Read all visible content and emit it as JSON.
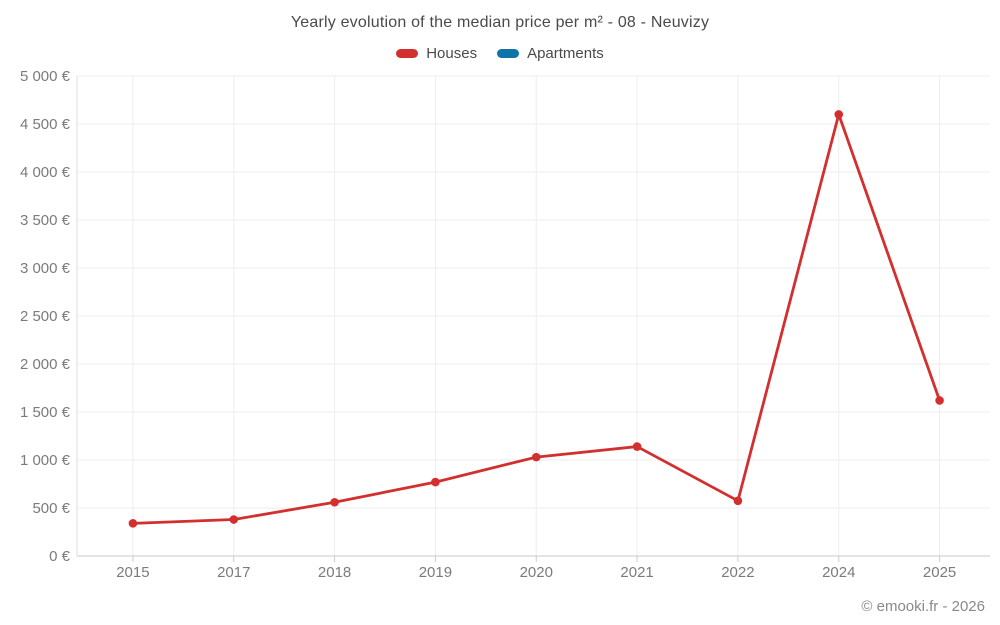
{
  "title": "Yearly evolution of the median price per m² - 08 - Neuvizy",
  "footer": "© emooki.fr - 2026",
  "legend": {
    "items": [
      {
        "label": "Houses",
        "color": "#d32f2f"
      },
      {
        "label": "Apartments",
        "color": "#0e73a8"
      }
    ]
  },
  "colors": {
    "houses": "#d32f2f",
    "apartments": "#0e73a8",
    "grid": "#ededed",
    "axis_line": "#c9c9c9",
    "y_axis_line": "#dedede",
    "tick": "#cccccc",
    "axis_text": "#7b7b7b",
    "title_text": "#4a4a4a",
    "footer_text": "#8a8a8a",
    "background": "#ffffff"
  },
  "chart_data": {
    "type": "line",
    "title": "Yearly evolution of the median price per m² - 08 - Neuvizy",
    "categories": [
      "2015",
      "2017",
      "2018",
      "2019",
      "2020",
      "2021",
      "2022",
      "2024",
      "2025"
    ],
    "series": [
      {
        "name": "Houses",
        "color": "#d32f2f",
        "values": [
          340,
          380,
          560,
          770,
          1030,
          1140,
          575,
          4600,
          1620
        ]
      },
      {
        "name": "Apartments",
        "color": "#0e73a8",
        "values": []
      }
    ],
    "xlabel": "",
    "ylabel": "",
    "unit": "€",
    "ylim": [
      0,
      5000
    ],
    "ytick_step": 500,
    "ytick_labels": [
      "0 €",
      "500 €",
      "1 000 €",
      "1 500 €",
      "2 000 €",
      "2 500 €",
      "3 000 €",
      "3 500 €",
      "4 000 €",
      "4 500 €",
      "5 000 €"
    ],
    "grid": true,
    "legend_position": "top"
  }
}
